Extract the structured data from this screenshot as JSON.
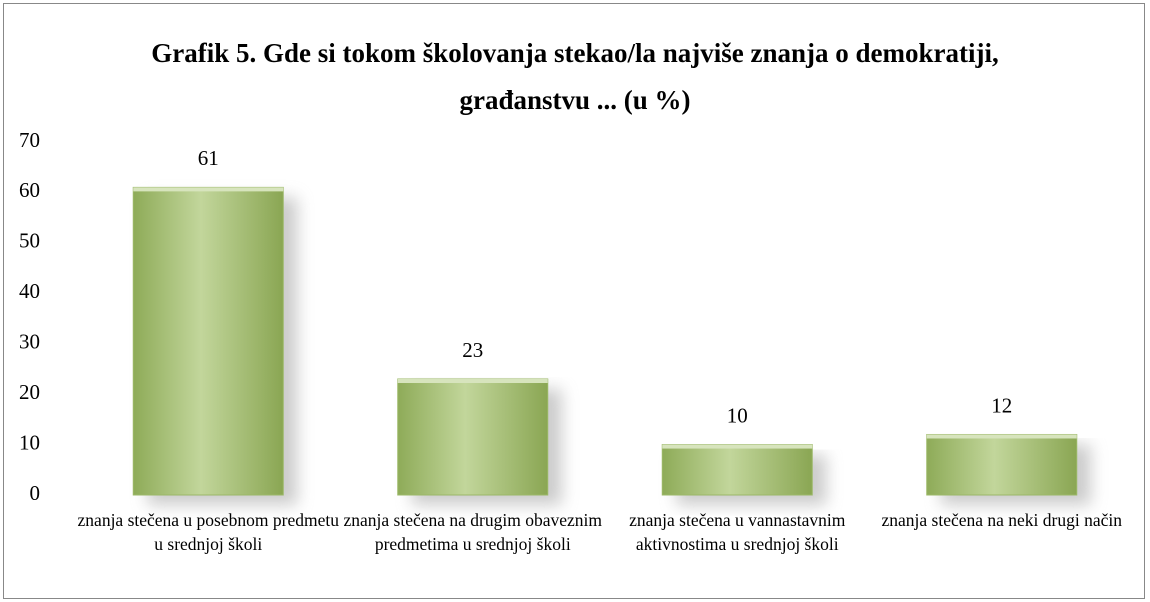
{
  "chart_data": {
    "type": "bar",
    "title": "Grafik 5. Gde si tokom školovanja stekao/la najviše znanja o demokratiji, građanstvu ... (u %)",
    "categories": [
      "znanja stečena u posebnom predmetu u srednjoj školi",
      "znanja stečena na drugim obaveznim predmetima u srednjoj školi",
      "znanja stečena u vannastavnim aktivnostima u srednjoj školi",
      "znanja stečena na neki drugi način"
    ],
    "values": [
      61,
      23,
      10,
      12
    ],
    "color": "#9bb867",
    "ylim": [
      0,
      70
    ],
    "yticks": [
      0,
      10,
      20,
      30,
      40,
      50,
      60,
      70
    ],
    "grid": false
  }
}
